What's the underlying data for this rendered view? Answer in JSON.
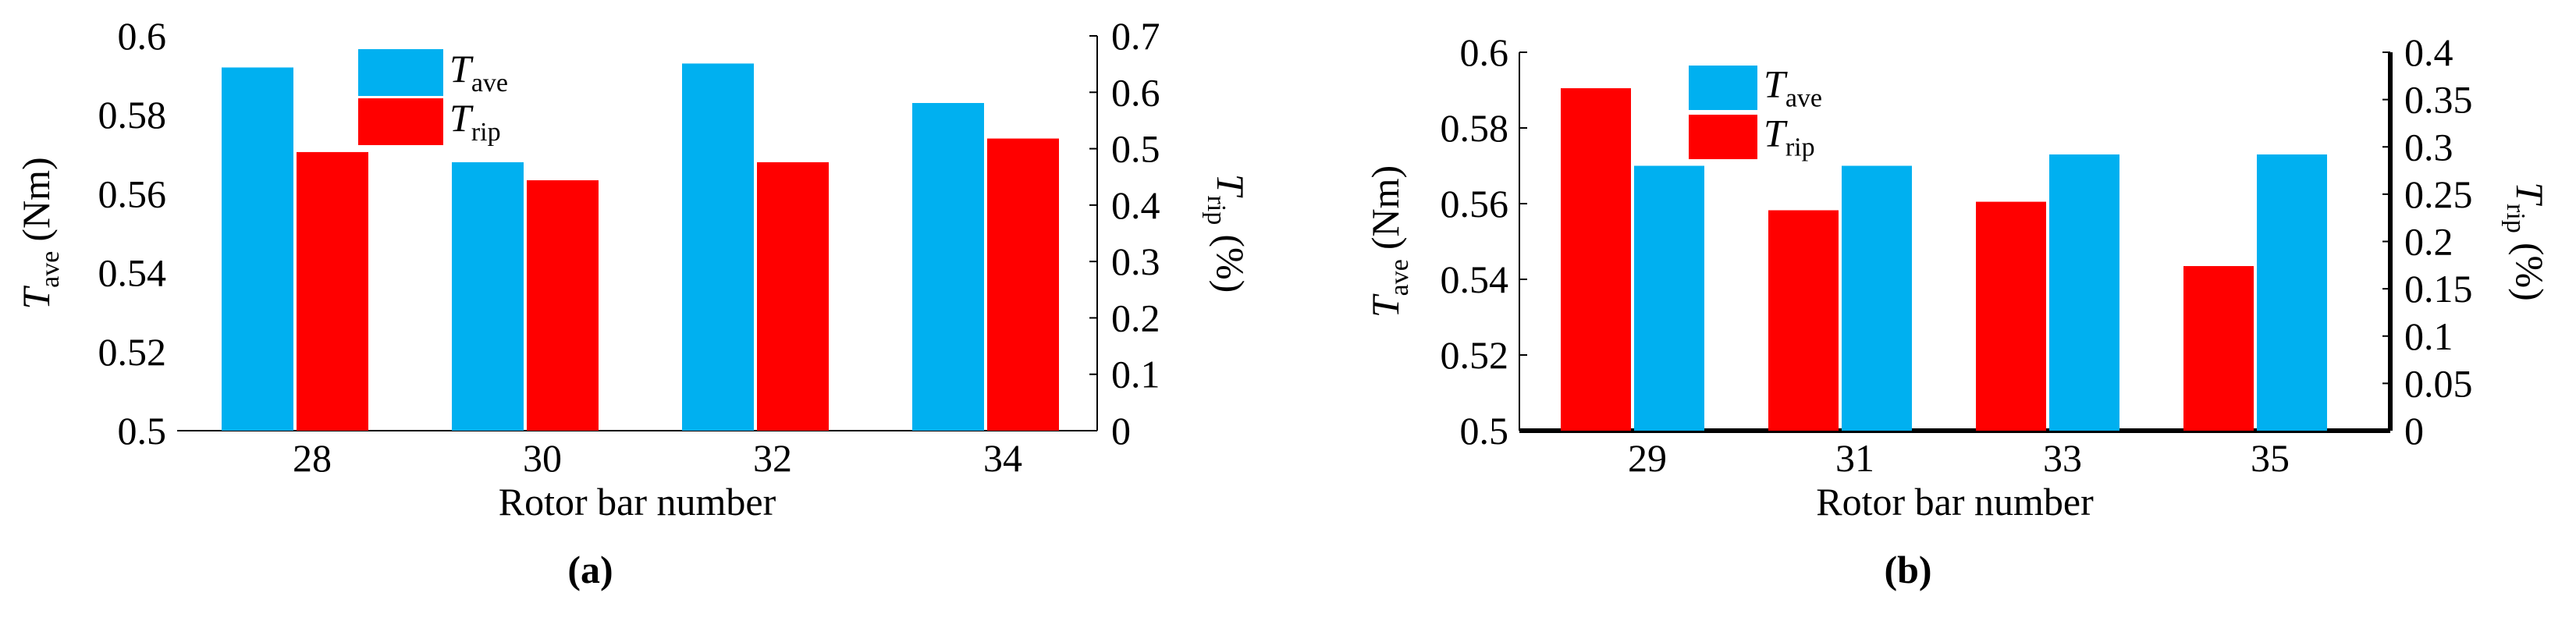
{
  "chart_data": [
    {
      "type": "bar",
      "panel_label": "(a)",
      "x_label": "Rotor bar number",
      "y_label": "T",
      "y_label_sub": "ave",
      "y_label_unit": "(Nm)",
      "y2_label": "T",
      "y2_label_sub": "rip",
      "y2_label_unit": "(%)",
      "categories": [
        "28",
        "30",
        "32",
        "34"
      ],
      "series": [
        {
          "name": "T",
          "name_sub": "ave",
          "color": "#00b0f0",
          "values": [
            0.592,
            0.568,
            0.593,
            0.583
          ]
        },
        {
          "name": "T",
          "name_sub": "rip",
          "color": "#ff0000",
          "axis": "y2",
          "values": [
            0.494,
            0.444,
            0.476,
            0.518
          ]
        }
      ],
      "ylim": [
        0.5,
        0.6
      ],
      "yticks": [
        0.5,
        0.52,
        0.54,
        0.56,
        0.58,
        0.6
      ],
      "y2lim": [
        0,
        0.7
      ],
      "y2ticks": [
        0,
        0.1,
        0.2,
        0.3,
        0.4,
        0.5,
        0.6,
        0.7
      ]
    },
    {
      "type": "bar",
      "panel_label": "(b)",
      "x_label": "Rotor bar number",
      "y_label": "T",
      "y_label_sub": "ave",
      "y_label_unit": "(Nm)",
      "y2_label": "T",
      "y2_label_sub": "rip",
      "y2_label_unit": "(%)",
      "categories": [
        "29",
        "31",
        "33",
        "35"
      ],
      "series": [
        {
          "name": "T",
          "name_sub": "ave",
          "color": "#00b0f0",
          "values": [
            0.57,
            0.57,
            0.573,
            0.573
          ]
        },
        {
          "name": "T",
          "name_sub": "rip",
          "color": "#ff0000",
          "axis": "y2",
          "values": [
            0.362,
            0.233,
            0.242,
            0.174
          ]
        }
      ],
      "ylim": [
        0.5,
        0.6
      ],
      "yticks": [
        0.5,
        0.52,
        0.54,
        0.56,
        0.58,
        0.6
      ],
      "y2lim": [
        0,
        0.4
      ],
      "y2ticks": [
        0,
        0.05,
        0.1,
        0.15,
        0.2,
        0.25,
        0.3,
        0.35,
        0.4
      ]
    }
  ]
}
